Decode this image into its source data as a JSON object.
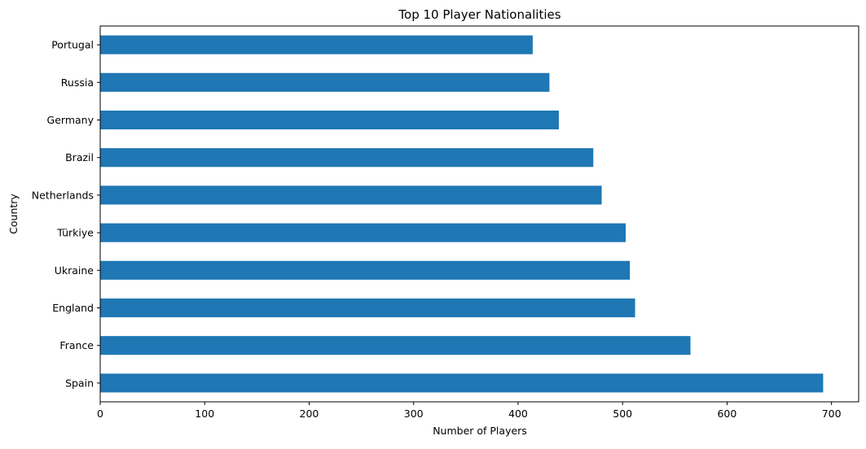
{
  "chart_data": {
    "type": "bar",
    "orientation": "horizontal",
    "title": "Top 10 Player Nationalities",
    "xlabel": "Number of Players",
    "ylabel": "Country",
    "categories": [
      "Spain",
      "France",
      "England",
      "Ukraine",
      "Türkiye",
      "Netherlands",
      "Brazil",
      "Germany",
      "Russia",
      "Portugal"
    ],
    "values": [
      692,
      565,
      512,
      507,
      503,
      480,
      472,
      439,
      430,
      414
    ],
    "xlim": [
      0,
      726
    ],
    "xticks": [
      "0",
      "100",
      "200",
      "300",
      "400",
      "500",
      "600",
      "700"
    ],
    "grid": false,
    "bar_color": "#1f77b4"
  }
}
